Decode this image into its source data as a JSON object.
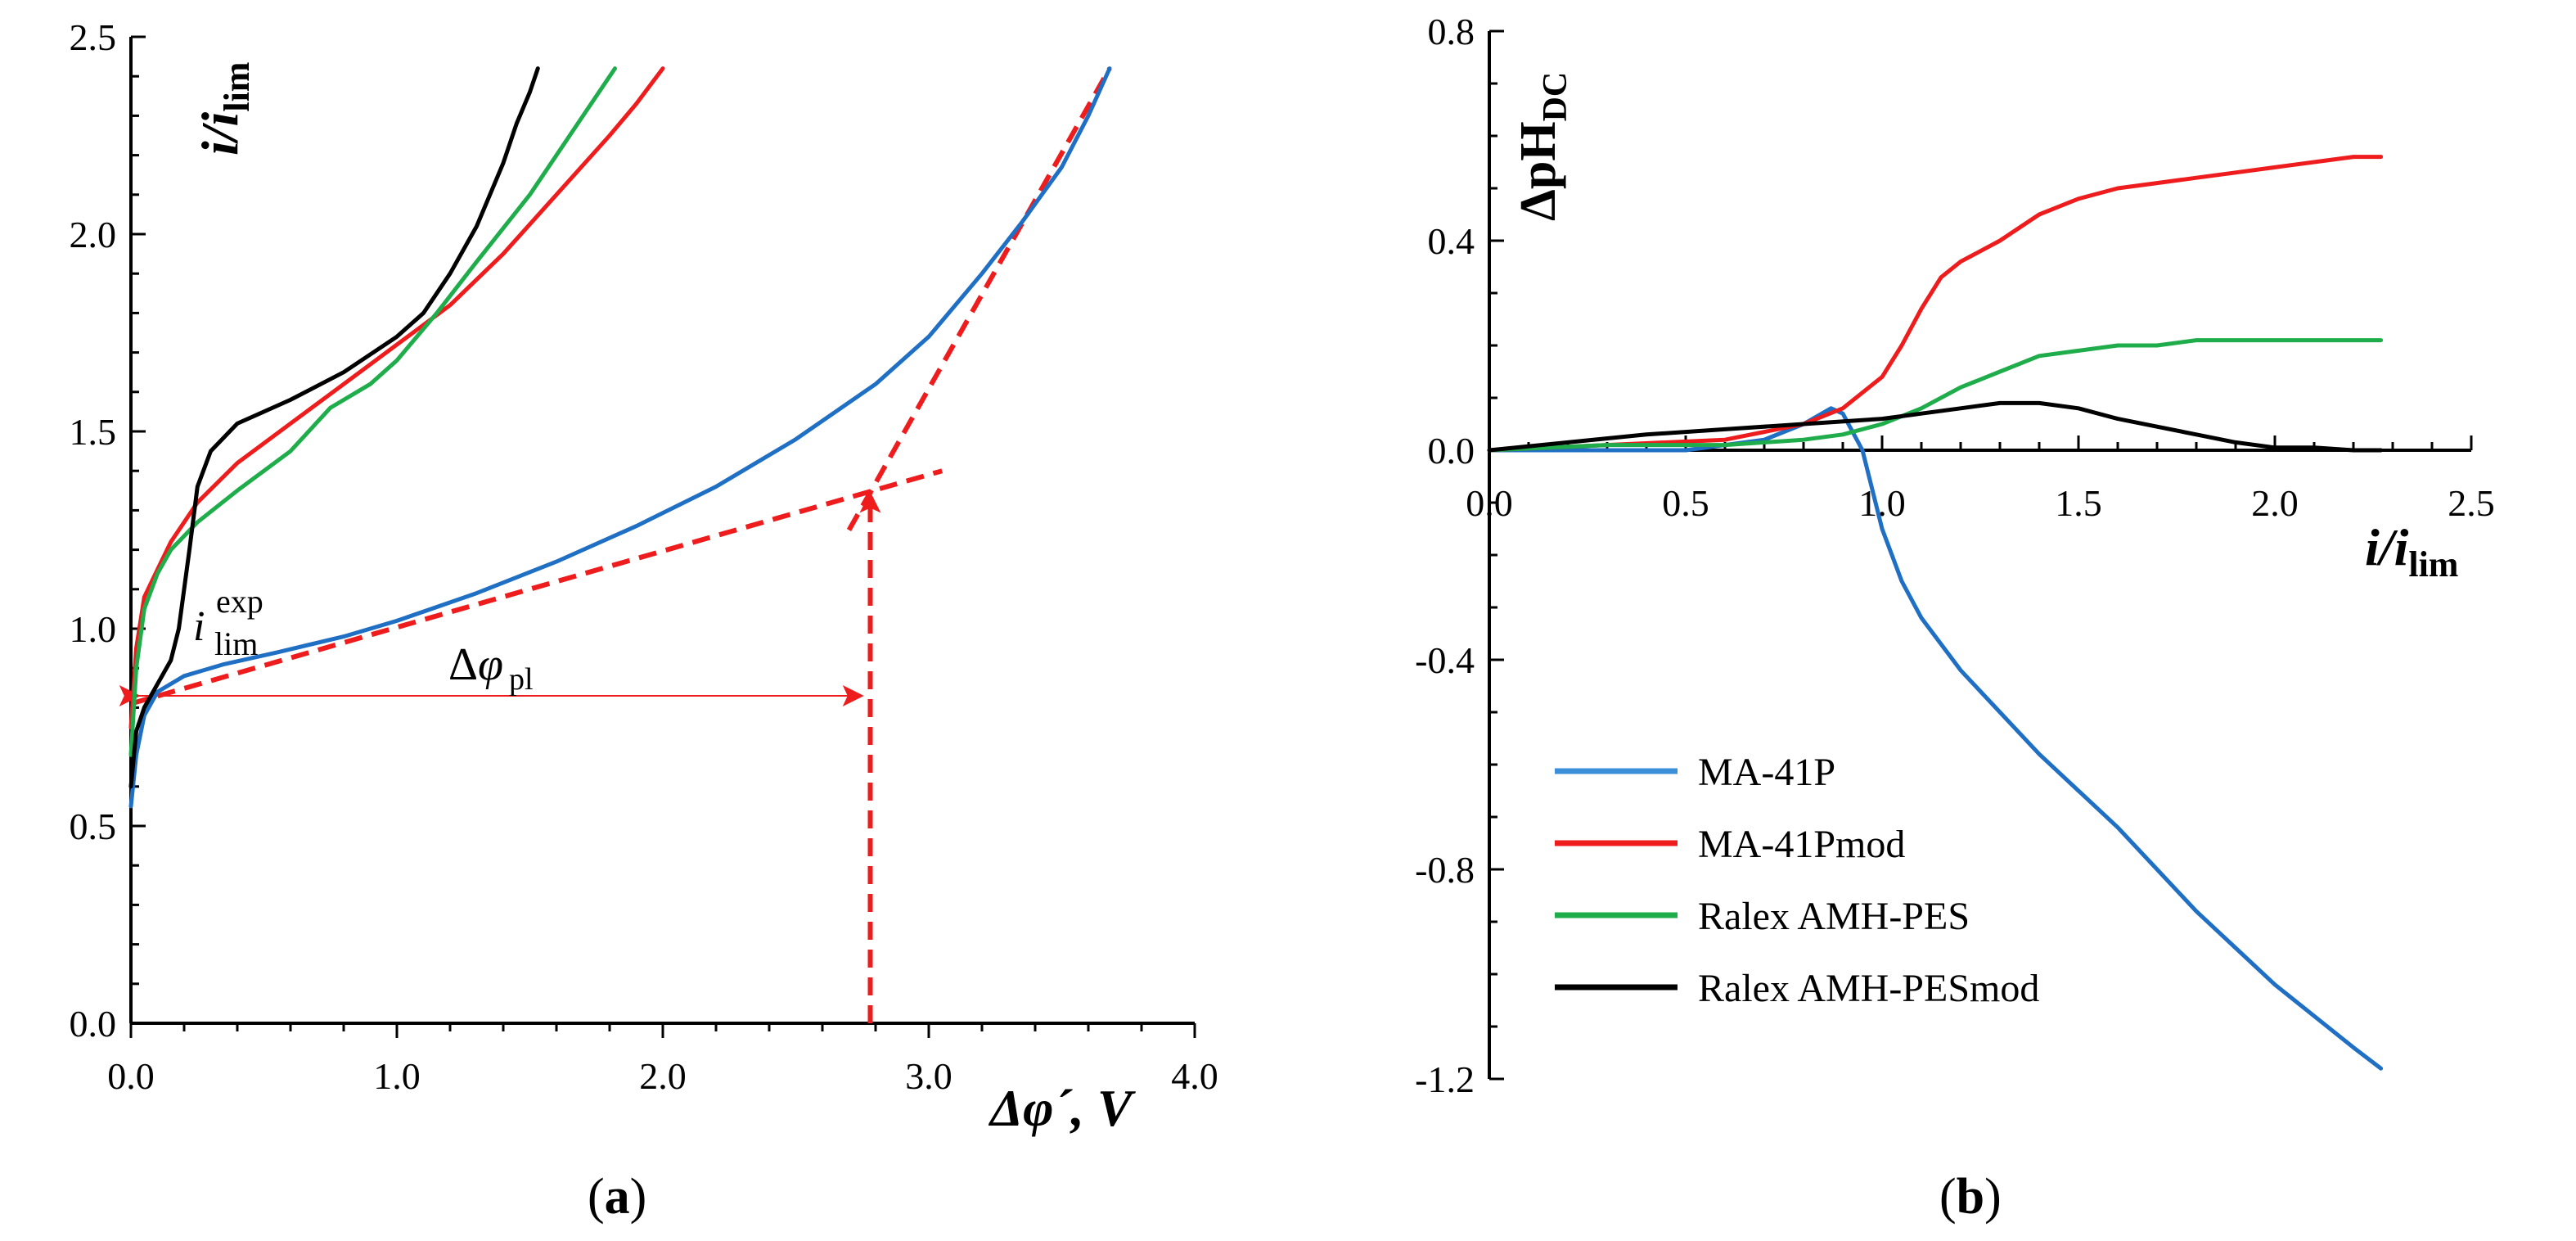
{
  "panels": [
    {
      "id": "a",
      "label_open": "(",
      "label_letter": "a",
      "label_close": ")",
      "xlabel_main": "Δφ´, V",
      "ylabel_i": "i",
      "ylabel_slash": "/",
      "ylabel_ii": "i",
      "ylabel_sub": "lim",
      "x_ticks": [
        "0.0",
        "1.0",
        "2.0",
        "3.0",
        "4.0"
      ],
      "y_ticks": [
        "0.0",
        "0.5",
        "1.0",
        "1.5",
        "2.0",
        "2.5"
      ],
      "annotations": {
        "ilim_i": "i",
        "ilim_sub": "lim",
        "ilim_sup": "exp",
        "dphi_delta": "Δ",
        "dphi_phi": "φ",
        "dphi_sub": "pl"
      }
    },
    {
      "id": "b",
      "label_open": "(",
      "label_letter": "b",
      "label_close": ")",
      "xlabel_i": "i",
      "xlabel_slash": "/",
      "xlabel_ii": "i",
      "xlabel_sub": "lim",
      "ylabel_main": "ΔpH",
      "ylabel_sub": "DC",
      "x_ticks": [
        "0.0",
        "0.5",
        "1.0",
        "1.5",
        "2.0",
        "2.5"
      ],
      "y_ticks": [
        "0.8",
        "0.4",
        "0.0",
        "-0.4",
        "-0.8",
        "-1.2"
      ]
    }
  ],
  "legend": {
    "placement": "bottom-left of panel b",
    "items": [
      {
        "label": "MA-41P",
        "color": "#3b8fd9"
      },
      {
        "label": "MA-41Pmod",
        "color": "#ee1c1c"
      },
      {
        "label": "Ralex AMH-PES",
        "color": "#1fad4b"
      },
      {
        "label": "Ralex AMH-PESmod",
        "color": "#000000"
      }
    ]
  },
  "chart_data": [
    {
      "type": "line",
      "panel": "a",
      "xlabel": "Δφ´, V",
      "ylabel": "i/ilim",
      "xlim": [
        0,
        4
      ],
      "ylim": [
        0,
        2.5
      ],
      "grid": false,
      "series": [
        {
          "name": "MA-41P",
          "color": "#1f6fc4",
          "x": [
            0.0,
            0.02,
            0.05,
            0.1,
            0.2,
            0.35,
            0.55,
            0.8,
            1.0,
            1.3,
            1.6,
            1.9,
            2.2,
            2.5,
            2.8,
            3.0,
            3.2,
            3.35,
            3.5,
            3.6,
            3.68
          ],
          "y": [
            0.55,
            0.68,
            0.78,
            0.84,
            0.88,
            0.91,
            0.94,
            0.98,
            1.02,
            1.09,
            1.17,
            1.26,
            1.36,
            1.48,
            1.62,
            1.74,
            1.9,
            2.03,
            2.17,
            2.3,
            2.42
          ]
        },
        {
          "name": "MA-41Pmod",
          "color": "#ee1c1c",
          "x": [
            0.0,
            0.02,
            0.05,
            0.1,
            0.15,
            0.25,
            0.4,
            0.6,
            0.8,
            1.0,
            1.2,
            1.4,
            1.6,
            1.8,
            1.9,
            2.0
          ],
          "y": [
            0.75,
            0.95,
            1.08,
            1.15,
            1.22,
            1.32,
            1.42,
            1.52,
            1.62,
            1.72,
            1.82,
            1.95,
            2.1,
            2.25,
            2.33,
            2.42
          ]
        },
        {
          "name": "Ralex AMH-PES",
          "color": "#1fad4b",
          "x": [
            0.0,
            0.02,
            0.05,
            0.1,
            0.15,
            0.25,
            0.4,
            0.6,
            0.75,
            0.9,
            1.0,
            1.15,
            1.3,
            1.5,
            1.7,
            1.82
          ],
          "y": [
            0.68,
            0.9,
            1.05,
            1.14,
            1.2,
            1.27,
            1.35,
            1.45,
            1.56,
            1.62,
            1.68,
            1.8,
            1.93,
            2.1,
            2.3,
            2.42
          ]
        },
        {
          "name": "Ralex AMH-PESmod",
          "color": "#000000",
          "x": [
            0.0,
            0.02,
            0.05,
            0.1,
            0.15,
            0.18,
            0.22,
            0.25,
            0.3,
            0.4,
            0.6,
            0.8,
            1.0,
            1.1,
            1.2,
            1.3,
            1.4,
            1.45,
            1.5,
            1.53
          ],
          "y": [
            0.6,
            0.74,
            0.8,
            0.86,
            0.92,
            1.0,
            1.2,
            1.36,
            1.45,
            1.52,
            1.58,
            1.65,
            1.74,
            1.8,
            1.9,
            2.02,
            2.18,
            2.28,
            2.36,
            2.42
          ]
        }
      ],
      "constructions": {
        "color": "#ee1c1c",
        "plateau_tangent": {
          "x": [
            0.0,
            3.05
          ],
          "y": [
            0.81,
            1.4
          ]
        },
        "overlimiting_tangent": {
          "x": [
            2.7,
            3.68
          ],
          "y": [
            1.25,
            2.42
          ]
        },
        "intersection_drop": {
          "x": [
            2.78,
            2.78
          ],
          "y": [
            0.0,
            1.36
          ]
        },
        "dphi_pl_arrow": {
          "x": [
            0.03,
            2.75
          ],
          "y": [
            0.83,
            0.83
          ]
        }
      }
    },
    {
      "type": "line",
      "panel": "b",
      "xlabel": "i/ilim",
      "ylabel": "ΔpHDC",
      "xlim": [
        0,
        2.5
      ],
      "ylim": [
        -1.2,
        0.8
      ],
      "grid": false,
      "series": [
        {
          "name": "MA-41P",
          "color": "#1f6fc4",
          "x": [
            0.0,
            0.5,
            0.7,
            0.8,
            0.87,
            0.9,
            0.95,
            1.0,
            1.05,
            1.1,
            1.2,
            1.3,
            1.4,
            1.5,
            1.6,
            1.7,
            1.8,
            1.9,
            2.0,
            2.1,
            2.2,
            2.27
          ],
          "y": [
            0.0,
            0.0,
            0.02,
            0.05,
            0.08,
            0.07,
            0.0,
            -0.15,
            -0.25,
            -0.32,
            -0.42,
            -0.5,
            -0.58,
            -0.65,
            -0.72,
            -0.8,
            -0.88,
            -0.95,
            -1.02,
            -1.08,
            -1.14,
            -1.18
          ]
        },
        {
          "name": "MA-41Pmod",
          "color": "#ee1c1c",
          "x": [
            0.0,
            0.3,
            0.6,
            0.8,
            0.9,
            1.0,
            1.05,
            1.1,
            1.15,
            1.2,
            1.3,
            1.4,
            1.5,
            1.6,
            1.7,
            1.8,
            1.9,
            2.0,
            2.1,
            2.2,
            2.27
          ],
          "y": [
            0.0,
            0.01,
            0.02,
            0.05,
            0.08,
            0.14,
            0.2,
            0.27,
            0.33,
            0.36,
            0.4,
            0.45,
            0.48,
            0.5,
            0.51,
            0.52,
            0.53,
            0.54,
            0.55,
            0.56,
            0.56
          ]
        },
        {
          "name": "Ralex AMH-PES",
          "color": "#1fad4b",
          "x": [
            0.0,
            0.3,
            0.6,
            0.8,
            0.9,
            1.0,
            1.1,
            1.2,
            1.3,
            1.4,
            1.5,
            1.6,
            1.7,
            1.8,
            1.9,
            2.0,
            2.1,
            2.2,
            2.27
          ],
          "y": [
            0.0,
            0.01,
            0.01,
            0.02,
            0.03,
            0.05,
            0.08,
            0.12,
            0.15,
            0.18,
            0.19,
            0.2,
            0.2,
            0.21,
            0.21,
            0.21,
            0.21,
            0.21,
            0.21
          ]
        },
        {
          "name": "Ralex AMH-PESmod",
          "color": "#000000",
          "x": [
            0.0,
            0.2,
            0.4,
            0.6,
            0.8,
            1.0,
            1.1,
            1.2,
            1.3,
            1.4,
            1.5,
            1.6,
            1.7,
            1.8,
            1.9,
            2.0,
            2.1,
            2.2,
            2.27
          ],
          "y": [
            0.0,
            0.015,
            0.03,
            0.04,
            0.05,
            0.06,
            0.07,
            0.08,
            0.09,
            0.09,
            0.08,
            0.06,
            0.045,
            0.03,
            0.015,
            0.005,
            0.005,
            0.0,
            0.0
          ]
        }
      ]
    }
  ]
}
